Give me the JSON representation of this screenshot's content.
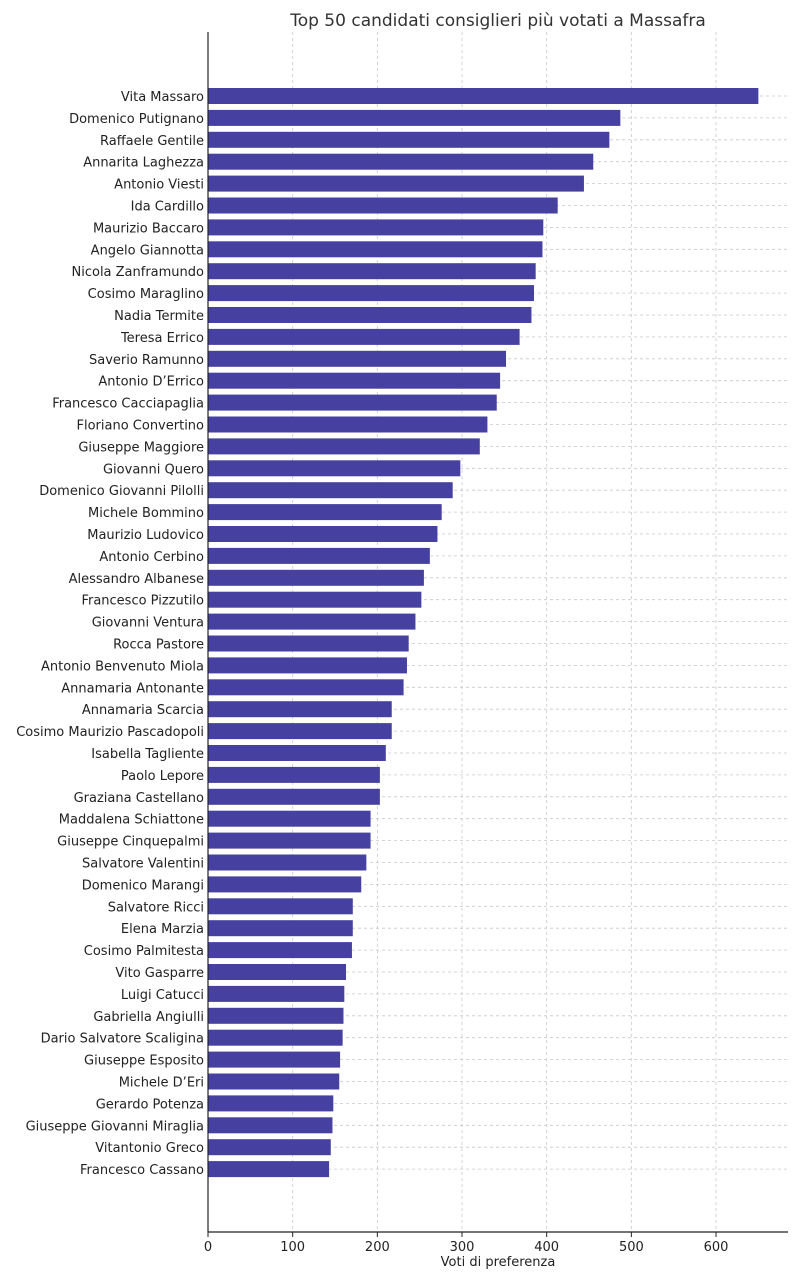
{
  "chart_data": {
    "type": "bar",
    "orientation": "horizontal",
    "title": "Top 50 candidati consiglieri più votati a Massafra",
    "xlabel": "Voti di preferenza",
    "ylabel": "",
    "xlim": [
      0,
      685
    ],
    "xticks": [
      0,
      100,
      200,
      300,
      400,
      500,
      600
    ],
    "grid": true,
    "bar_color": "#4641a1",
    "categories": [
      "Vita Massaro",
      "Domenico Putignano",
      "Raffaele Gentile",
      "Annarita Laghezza",
      "Antonio Viesti",
      "Ida Cardillo",
      "Maurizio Baccaro",
      "Angelo Giannotta",
      "Nicola Zanframundo",
      "Cosimo Maraglino",
      "Nadia Termite",
      "Teresa Errico",
      "Saverio Ramunno",
      "Antonio D’Errico",
      "Francesco Cacciapaglia",
      "Floriano Convertino",
      "Giuseppe Maggiore",
      "Giovanni Quero",
      "Domenico Giovanni Pilolli",
      "Michele Bommino",
      "Maurizio Ludovico",
      "Antonio Cerbino",
      "Alessandro Albanese",
      "Francesco Pizzutilo",
      "Giovanni Ventura",
      "Rocca Pastore",
      "Antonio Benvenuto Miola",
      "Annamaria Antonante",
      "Annamaria Scarcia",
      "Cosimo Maurizio Pascadopoli",
      "Isabella Tagliente",
      "Paolo Lepore",
      "Graziana Castellano",
      "Maddalena Schiattone",
      "Giuseppe Cinquepalmi",
      "Salvatore Valentini",
      "Domenico Marangi",
      "Salvatore Ricci",
      "Elena Marzia",
      "Cosimo Palmitesta",
      "Vito Gasparre",
      "Luigi Catucci",
      "Gabriella Angiulli",
      "Dario Salvatore Scaligina",
      "Giuseppe Esposito",
      "Michele D’Eri",
      "Gerardo Potenza",
      "Giuseppe Giovanni Miraglia",
      "Vitantonio Greco",
      "Francesco Cassano"
    ],
    "values": [
      650,
      487,
      474,
      455,
      444,
      413,
      396,
      395,
      387,
      385,
      382,
      368,
      352,
      345,
      341,
      330,
      321,
      298,
      289,
      276,
      271,
      262,
      255,
      252,
      245,
      237,
      235,
      231,
      217,
      217,
      210,
      203,
      203,
      192,
      192,
      187,
      181,
      171,
      171,
      170,
      163,
      161,
      160,
      159,
      156,
      155,
      148,
      147,
      145,
      143
    ]
  }
}
